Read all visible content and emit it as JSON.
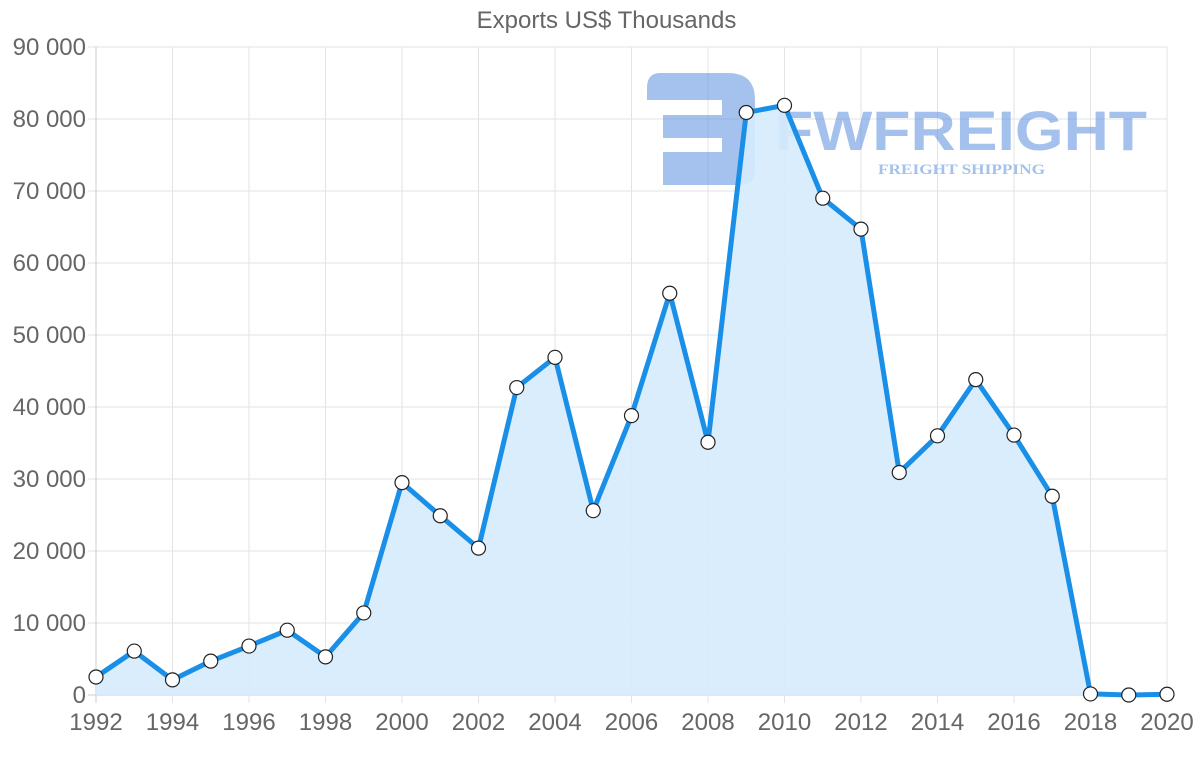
{
  "chart_data": {
    "type": "area",
    "title": "Exports US$ Thousands",
    "xlabel": "",
    "ylabel": "",
    "x": [
      1992,
      1993,
      1994,
      1995,
      1996,
      1997,
      1998,
      1999,
      2000,
      2001,
      2002,
      2003,
      2004,
      2005,
      2006,
      2007,
      2008,
      2009,
      2010,
      2011,
      2012,
      2013,
      2014,
      2015,
      2016,
      2017,
      2018,
      2019,
      2020
    ],
    "series": [
      {
        "name": "Exports US$ Thousands",
        "values": [
          2500,
          6100,
          2100,
          4700,
          6800,
          9000,
          5300,
          11400,
          29500,
          24900,
          20400,
          42700,
          46900,
          25600,
          38800,
          55800,
          35100,
          80900,
          81900,
          69000,
          64700,
          30900,
          36000,
          43800,
          36100,
          27600,
          150,
          0,
          100
        ]
      }
    ],
    "ylim": [
      0,
      90000
    ],
    "yticks": [
      "0",
      "10 000",
      "20 000",
      "30 000",
      "40 000",
      "50 000",
      "60 000",
      "70 000",
      "80 000",
      "90 000"
    ],
    "xticks": [
      "1992",
      "1994",
      "1996",
      "1998",
      "2000",
      "2002",
      "2004",
      "2006",
      "2008",
      "2010",
      "2012",
      "2014",
      "2016",
      "2018",
      "2020"
    ],
    "grid": true,
    "legend": "none"
  },
  "colors": {
    "line": "#1a8fe8",
    "fill": "#d6ebfc",
    "grid": "#e3e3e3",
    "axis": "#cccccc",
    "tick_text": "#666666",
    "watermark": "#a9c4f0"
  },
  "watermark": {
    "brand": "FWFREIGHT",
    "tagline": "FREIGHT SHIPPING"
  }
}
